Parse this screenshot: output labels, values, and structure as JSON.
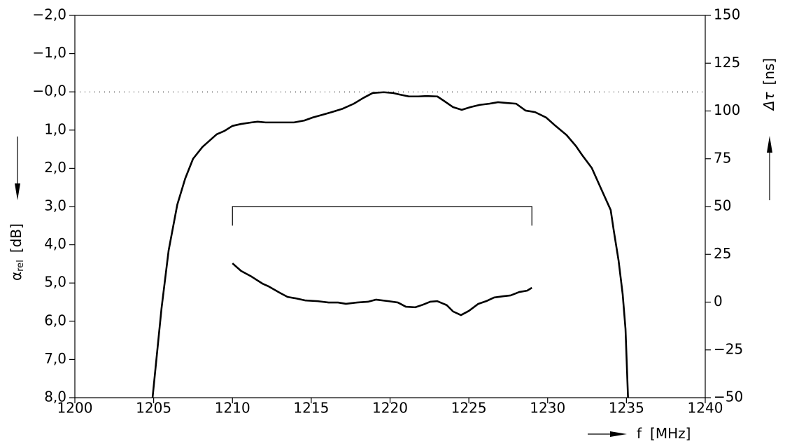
{
  "chart_data": {
    "type": "line",
    "xlabel": {
      "symbol": "f",
      "unit": "[MHz]"
    },
    "ylabel": {
      "symbol": "α",
      "subscript": "rel",
      "unit": "[dB]"
    },
    "y2label": {
      "symbol": "Δτ",
      "unit": "[ns]"
    },
    "xlim": [
      1200,
      1240
    ],
    "xticks": [
      1200,
      1205,
      1210,
      1215,
      1220,
      1225,
      1230,
      1235,
      1240
    ],
    "ylim": [
      8,
      -2
    ],
    "yticks": [
      {
        "value": -2,
        "label": "−2,0"
      },
      {
        "value": -1,
        "label": "−1,0"
      },
      {
        "value": 0,
        "label": "−0,0"
      },
      {
        "value": 1,
        "label": "1,0"
      },
      {
        "value": 2,
        "label": "2,0"
      },
      {
        "value": 3,
        "label": "3,0"
      },
      {
        "value": 4,
        "label": "4,0"
      },
      {
        "value": 5,
        "label": "5,0"
      },
      {
        "value": 6,
        "label": "6,0"
      },
      {
        "value": 7,
        "label": "7,0"
      },
      {
        "value": 8,
        "label": "8,0"
      }
    ],
    "y2lim": [
      -50,
      150
    ],
    "y2ticks": [
      150,
      125,
      100,
      75,
      50,
      25,
      0,
      {
        "value": -25,
        "label": "−25"
      },
      {
        "value": -50,
        "label": "−50"
      }
    ],
    "reference_line": 0,
    "bracket": {
      "x": [
        1210,
        1229
      ],
      "y": [
        3.5,
        3.0
      ]
    },
    "color": "#000000",
    "series": [
      {
        "color": "#000000",
        "x": [
          1204.93,
          1205.5,
          1205.95,
          1206.5,
          1207.0,
          1207.5,
          1208.1,
          1209.0,
          1209.5,
          1210.0,
          1210.55,
          1211.2,
          1211.6,
          1212.1,
          1213.45,
          1213.9,
          1214.56,
          1215.1,
          1215.7,
          1216.3,
          1217.0,
          1217.7,
          1218.3,
          1218.9,
          1219.6,
          1220.2,
          1220.6,
          1221.2,
          1221.8,
          1222.3,
          1223.0,
          1223.4,
          1224.0,
          1224.55,
          1225.1,
          1225.7,
          1226.3,
          1226.85,
          1227.4,
          1228.0,
          1228.6,
          1229.2,
          1229.9,
          1230.5,
          1231.2,
          1231.8,
          1232.2,
          1232.8,
          1233.3,
          1234.0,
          1234.2,
          1234.5,
          1234.76,
          1234.94,
          1235.1
        ],
        "values": [
          8.0,
          5.66,
          4.15,
          2.95,
          2.27,
          1.75,
          1.44,
          1.11,
          1.02,
          0.89,
          0.84,
          0.8,
          0.78,
          0.8,
          0.8,
          0.8,
          0.75,
          0.67,
          0.6,
          0.53,
          0.44,
          0.31,
          0.16,
          0.03,
          0.01,
          0.03,
          0.07,
          0.12,
          0.12,
          0.11,
          0.12,
          0.23,
          0.4,
          0.47,
          0.4,
          0.34,
          0.31,
          0.27,
          0.29,
          0.31,
          0.49,
          0.53,
          0.67,
          0.89,
          1.13,
          1.42,
          1.66,
          1.99,
          2.45,
          3.09,
          3.64,
          4.41,
          5.29,
          6.2,
          8.0
        ]
      },
      {
        "color": "#000000",
        "axis": "y2",
        "x": [
          1210.0,
          1210.55,
          1211.2,
          1211.9,
          1212.3,
          1213.0,
          1213.5,
          1214.0,
          1214.6,
          1215.4,
          1216.1,
          1216.7,
          1217.2,
          1217.9,
          1218.6,
          1219.1,
          1219.9,
          1220.5,
          1221.0,
          1221.6,
          1222.1,
          1222.55,
          1223.0,
          1223.6,
          1224.0,
          1224.5,
          1225.0,
          1225.6,
          1226.1,
          1226.6,
          1227.2,
          1227.65,
          1228.2,
          1228.7,
          1229.0
        ],
        "values": [
          20.3,
          16.3,
          13.4,
          9.7,
          8.2,
          4.9,
          2.7,
          2.0,
          0.9,
          0.5,
          -0.2,
          -0.2,
          -0.9,
          -0.2,
          0.2,
          1.3,
          0.5,
          -0.2,
          -2.4,
          -2.7,
          -1.3,
          0.2,
          0.5,
          -1.6,
          -4.9,
          -6.8,
          -4.6,
          -0.9,
          0.5,
          2.4,
          3.1,
          3.5,
          5.3,
          6.0,
          7.5
        ]
      }
    ]
  }
}
